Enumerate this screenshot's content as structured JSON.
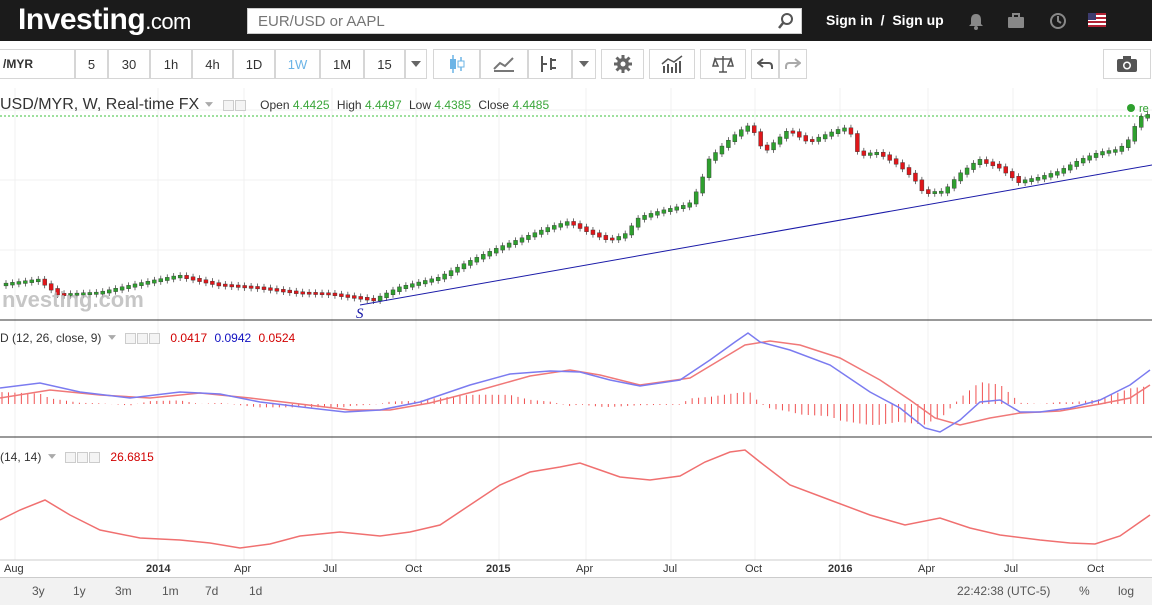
{
  "header": {
    "logo_main": "Investing",
    "logo_suffix": ".com",
    "search_placeholder": "EUR/USD or AAPL",
    "sign_in": "Sign in",
    "separator": "/",
    "sign_up": "Sign up"
  },
  "toolbar": {
    "symbol": "/MYR",
    "intervals": [
      "5",
      "30",
      "1h",
      "4h",
      "1D",
      "1W",
      "1M",
      "15"
    ],
    "active_interval": "1W"
  },
  "legend": {
    "symbol_title": "USD/MYR, W, Real-time FX",
    "open_label": "Open",
    "open": "4.4425",
    "high_label": "High",
    "high": "4.4497",
    "low_label": "Low",
    "low": "4.4385",
    "close_label": "Close",
    "close": "4.4485",
    "edge_text": "re"
  },
  "macd": {
    "label": "D (12, 26, close, 9)",
    "v1": "0.0417",
    "v2": "0.0942",
    "v3": "0.0524"
  },
  "rsi": {
    "label": "(14, 14)",
    "value": "26.6815"
  },
  "watermark": "nvesting.com",
  "annotation_s": "S",
  "x_axis_labels": [
    "Aug",
    "2014",
    "Apr",
    "Jul",
    "Oct",
    "2015",
    "Apr",
    "Jul",
    "Oct",
    "2016",
    "Apr",
    "Jul",
    "Oct"
  ],
  "bottom": {
    "ranges": [
      "3y",
      "1y",
      "3m",
      "1m",
      "7d",
      "1d"
    ],
    "time": "22:42:38 (UTC-5)",
    "percent": "%",
    "log": "log"
  },
  "colors": {
    "up": "#2ea02e",
    "down": "#e0161a",
    "macd_line": "#7b7bf0",
    "signal_line": "#f07878",
    "trendline": "#1a1aa8",
    "rsi_line": "#f07070"
  }
}
